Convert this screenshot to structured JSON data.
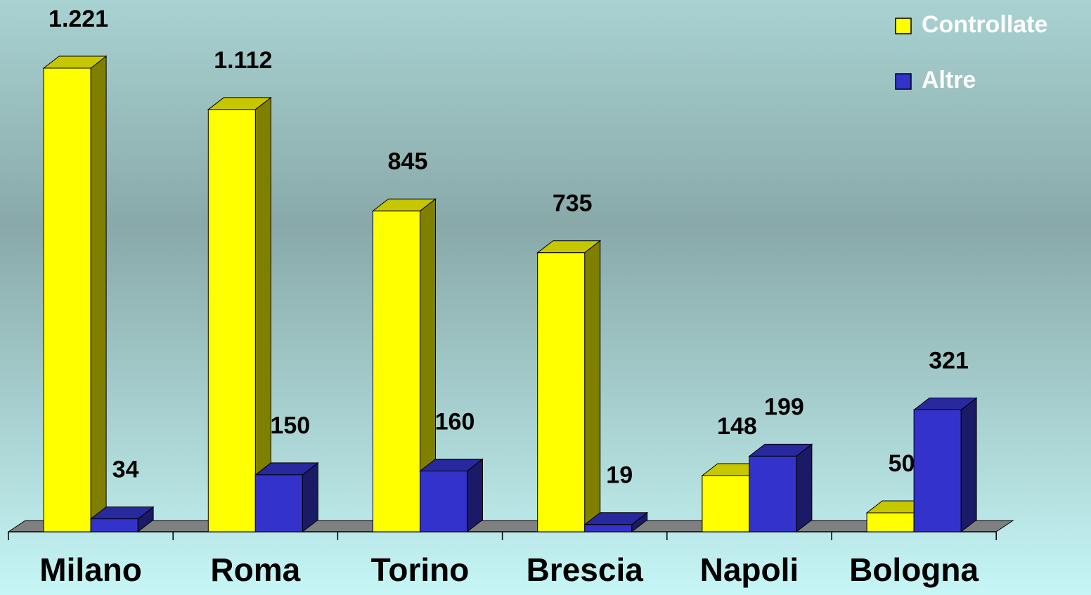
{
  "chart_data": {
    "type": "bar3d",
    "categories": [
      "Milano",
      "Roma",
      "Torino",
      "Brescia",
      "Napoli",
      "Bologna"
    ],
    "series": [
      {
        "name": "Controllate",
        "color": "#ffff00",
        "values": [
          1221,
          1112,
          845,
          735,
          148,
          50
        ],
        "value_labels": [
          "1.221",
          "1.112",
          "845",
          "735",
          "148",
          "50"
        ]
      },
      {
        "name": "Altre",
        "color": "#3333cc",
        "values": [
          34,
          150,
          160,
          19,
          199,
          321
        ],
        "value_labels": [
          "34",
          "150",
          "160",
          "19",
          "199",
          "321"
        ]
      }
    ],
    "legend": "top-right"
  }
}
